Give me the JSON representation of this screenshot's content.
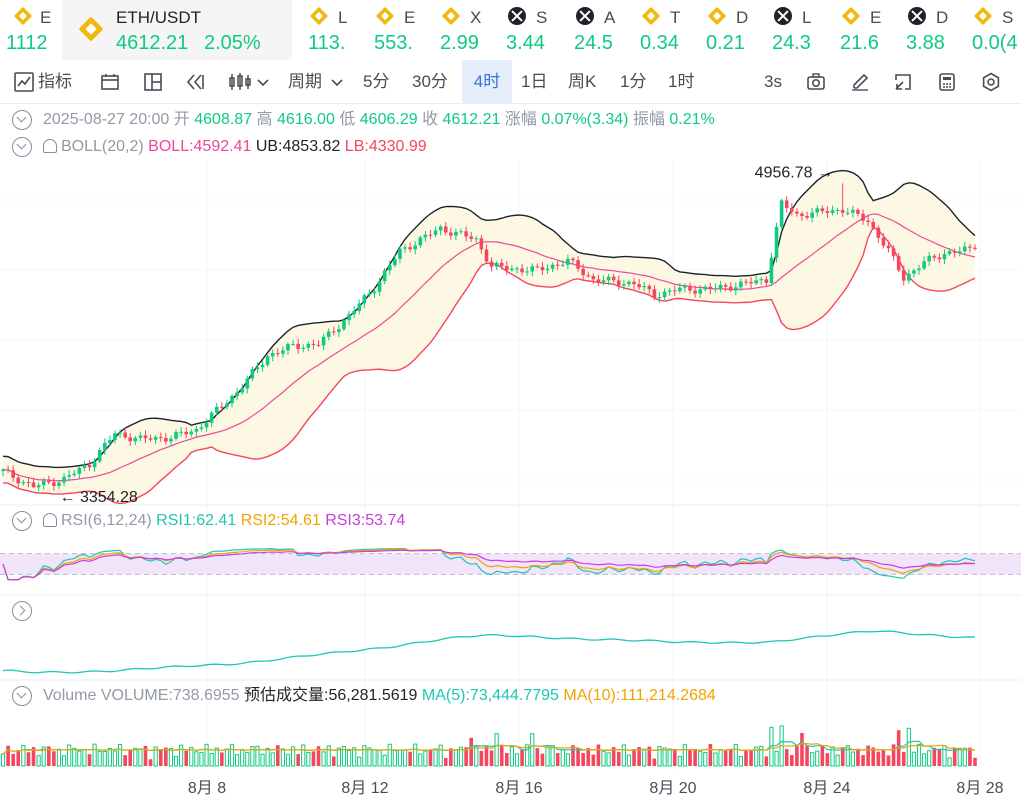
{
  "ticker": [
    {
      "sym": "E",
      "val": "1112",
      "icon": "bnb"
    },
    {
      "sym": "L",
      "val": "113.",
      "icon": "bnb"
    },
    {
      "sym": "E",
      "val": "553.",
      "icon": "bnb"
    },
    {
      "sym": "X",
      "val": "2.99",
      "icon": "bnb"
    },
    {
      "sym": "S",
      "val": "3.44",
      "icon": "xo"
    },
    {
      "sym": "A",
      "val": "24.5",
      "icon": "xo"
    },
    {
      "sym": "T",
      "val": "0.34",
      "icon": "bnb"
    },
    {
      "sym": "D",
      "val": "0.21",
      "icon": "bnb"
    },
    {
      "sym": "L",
      "val": "24.3",
      "icon": "xo"
    },
    {
      "sym": "E",
      "val": "21.6",
      "icon": "bnb"
    },
    {
      "sym": "D",
      "val": "3.88",
      "icon": "xo"
    },
    {
      "sym": "S",
      "val": "0.0(4",
      "icon": "bnb"
    }
  ],
  "active_pair": {
    "pair": "ETH/USDT",
    "price": "4612.21",
    "change": "2.05%"
  },
  "toolbar": {
    "indicators": "指标",
    "period": "周期",
    "intervals": [
      "5分",
      "30分",
      "4时",
      "1日",
      "周K",
      "1分",
      "1时"
    ],
    "active_interval": "4时",
    "refresh": "3s"
  },
  "ohlc": {
    "date": "2025-08-27 20:00",
    "open_label": "开",
    "open": "4608.87",
    "high_label": "高",
    "high": "4616.00",
    "low_label": "低",
    "low": "4606.29",
    "close_label": "收",
    "close": "4612.21",
    "change_label": "涨幅",
    "change": "0.07%(3.34)",
    "amp_label": "振幅",
    "amp": "0.21%"
  },
  "boll": {
    "name": "BOLL(20,2)",
    "mid": "BOLL:4592.41",
    "ub": "UB:4853.82",
    "lb": "LB:4330.99"
  },
  "rsi": {
    "name": "RSI(6,12,24)",
    "rsi1": "RSI1:62.41",
    "rsi2": "RSI2:54.61",
    "rsi3": "RSI3:53.74"
  },
  "volume": {
    "name": "Volume",
    "vol": "VOLUME:738.6955",
    "est": "预估成交量:56,281.5619",
    "ma5": "MA(5):73,444.7795",
    "ma10": "MA(10):111,214.2684"
  },
  "colors": {
    "up": "#0ecb81",
    "down": "#f6465d",
    "boll_mid": "#f0469a",
    "boll_band": "#1e2329",
    "rsi1": "#1fc7b4",
    "rsi2": "#f0a400",
    "rsi3": "#c93de0"
  },
  "chart_data": {
    "type": "candlestick",
    "x_tick_labels": [
      "8月 8",
      "8月 12",
      "8月 16",
      "8月 20",
      "8月 24",
      "8月 28"
    ],
    "y_range": [
      3290,
      5080
    ],
    "annotations": {
      "high": "4956.78",
      "low": "3354.28"
    },
    "close_keyframes": [
      [
        0,
        3440
      ],
      [
        6,
        3360
      ],
      [
        12,
        3400
      ],
      [
        17,
        3480
      ],
      [
        22,
        3640
      ],
      [
        27,
        3610
      ],
      [
        33,
        3620
      ],
      [
        38,
        3660
      ],
      [
        46,
        3860
      ],
      [
        52,
        4050
      ],
      [
        57,
        4100
      ],
      [
        62,
        4110
      ],
      [
        68,
        4260
      ],
      [
        73,
        4410
      ],
      [
        78,
        4600
      ],
      [
        86,
        4720
      ],
      [
        93,
        4660
      ],
      [
        96,
        4520
      ],
      [
        99,
        4510
      ],
      [
        105,
        4500
      ],
      [
        111,
        4550
      ],
      [
        116,
        4450
      ],
      [
        124,
        4430
      ],
      [
        128,
        4370
      ],
      [
        133,
        4400
      ],
      [
        139,
        4400
      ],
      [
        144,
        4420
      ],
      [
        150,
        4450
      ],
      [
        153,
        4850
      ],
      [
        156,
        4790
      ],
      [
        165,
        4820
      ],
      [
        170,
        4760
      ],
      [
        174,
        4600
      ],
      [
        177,
        4460
      ],
      [
        181,
        4540
      ],
      [
        185,
        4590
      ],
      [
        191,
        4612
      ]
    ],
    "rsi_y_range": [
      0,
      100
    ],
    "rsi_band": [
      30,
      70
    ]
  }
}
